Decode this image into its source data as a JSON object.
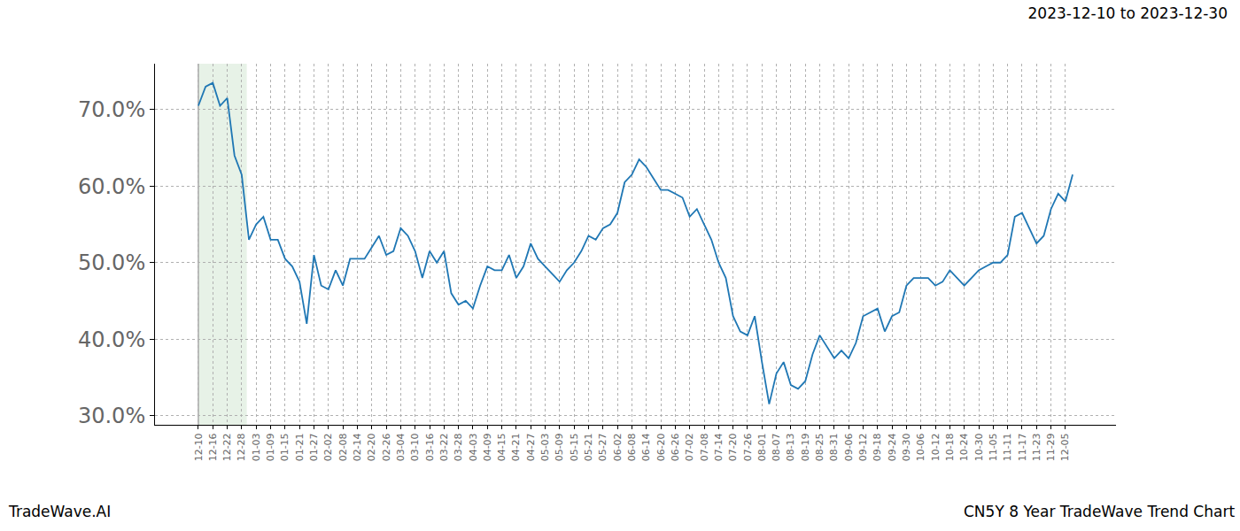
{
  "chart_data": {
    "type": "line",
    "title": "2023-12-10 to 2023-12-30",
    "annotations": [
      "TradeWave.AI",
      "CN5Y 8 Year TradeWave Trend Chart"
    ],
    "highlight": {
      "start_index": 0,
      "end_index": 6.7
    },
    "color": "#1f77b4",
    "grid": true,
    "ylim": [
      28.8,
      76.0
    ],
    "yticks": [
      {
        "value": 30,
        "label": "30.0%"
      },
      {
        "value": 40,
        "label": "40.0%"
      },
      {
        "value": 50,
        "label": "50.0%"
      },
      {
        "value": 60,
        "label": "60.0%"
      },
      {
        "value": 70,
        "label": "70.0%"
      }
    ],
    "categories": [
      "12-10",
      null,
      "12-16",
      null,
      "12-22",
      null,
      "12-28",
      null,
      "01-03",
      null,
      "01-09",
      null,
      "01-15",
      null,
      "01-21",
      null,
      "01-27",
      null,
      "02-02",
      null,
      "02-08",
      null,
      "02-14",
      null,
      "02-20",
      null,
      "02-26",
      null,
      "03-04",
      null,
      "03-10",
      null,
      "03-16",
      null,
      "03-22",
      null,
      "03-28",
      null,
      "04-03",
      null,
      "04-09",
      null,
      "04-15",
      null,
      "04-21",
      null,
      "04-27",
      null,
      "05-03",
      null,
      "05-09",
      null,
      "05-15",
      null,
      "05-21",
      null,
      "05-27",
      null,
      "06-02",
      null,
      "06-08",
      null,
      "06-14",
      null,
      "06-20",
      null,
      "06-26",
      null,
      "07-02",
      null,
      "07-08",
      null,
      "07-14",
      null,
      "07-20",
      null,
      "07-26",
      null,
      "08-01",
      null,
      "08-07",
      null,
      "08-13",
      null,
      "08-19",
      null,
      "08-25",
      null,
      "08-31",
      null,
      "09-06",
      null,
      "09-12",
      null,
      "09-18",
      null,
      "09-24",
      null,
      "09-30",
      null,
      "10-06",
      null,
      "10-12",
      null,
      "10-18",
      null,
      "10-24",
      null,
      "10-30",
      null,
      "11-05",
      null,
      "11-11",
      null,
      "11-17",
      null,
      "11-23",
      null,
      "11-29",
      null,
      "12-05",
      null
    ],
    "values": [
      70.5,
      73,
      73.5,
      70.5,
      71.5,
      64,
      61.5,
      53,
      55,
      56,
      53,
      53,
      50.5,
      49.5,
      47.5,
      42,
      51,
      47,
      46.5,
      49,
      47,
      50.5,
      50.5,
      50.5,
      52,
      53.5,
      51,
      51.5,
      54.5,
      53.5,
      51.5,
      48,
      51.5,
      50,
      51.5,
      46,
      44.5,
      45,
      44,
      47,
      49.5,
      49,
      49,
      51,
      48,
      49.5,
      52.5,
      50.5,
      49.5,
      48.5,
      47.5,
      49,
      50,
      51.5,
      53.5,
      53,
      54.5,
      55,
      56.5,
      60.5,
      61.5,
      63.5,
      62.5,
      61,
      59.5,
      59.5,
      59,
      58.5,
      56,
      57,
      55,
      53,
      50,
      48,
      43,
      41,
      40.5,
      43,
      37,
      31.5,
      35.5,
      37,
      34,
      33.5,
      34.5,
      38,
      40.5,
      39,
      37.5,
      38.5,
      37.5,
      39.5,
      43,
      43.5,
      44,
      41,
      43,
      43.5,
      47,
      48,
      48,
      48,
      47,
      47.5,
      49,
      48,
      47,
      48,
      49,
      49.5,
      50,
      50,
      51,
      56,
      56.5,
      54.5,
      52.5,
      53.5,
      57,
      59,
      58,
      61.5
    ]
  }
}
